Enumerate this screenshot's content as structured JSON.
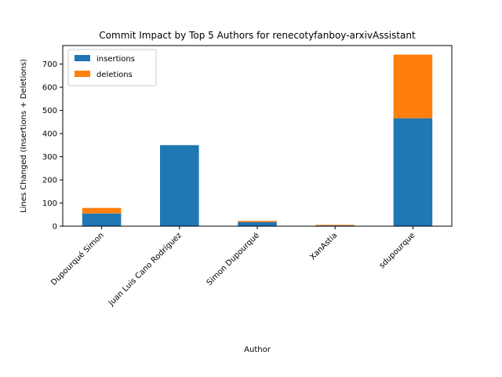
{
  "chart_data": {
    "type": "bar",
    "stacked": true,
    "title": "Commit Impact by Top 5 Authors for renecotyfanboy-arxivAssistant",
    "xlabel": "Author",
    "ylabel": "Lines Changed (Insertions + Deletions)",
    "categories": [
      "Dupourqué Simon",
      "Juan Luis Cano Rodríguez",
      "Simon Dupourqué",
      "XanAstia",
      "sdupourque"
    ],
    "series": [
      {
        "name": "insertions",
        "color": "#1f77b4",
        "values": [
          55,
          350,
          18,
          3,
          466
        ]
      },
      {
        "name": "deletions",
        "color": "#ff7f0e",
        "values": [
          24,
          0,
          5,
          3,
          275
        ]
      }
    ],
    "ylim": [
      0,
      780
    ],
    "yticks": [
      0,
      100,
      200,
      300,
      400,
      500,
      600,
      700
    ],
    "grid": false,
    "legend_position": "top-left"
  }
}
